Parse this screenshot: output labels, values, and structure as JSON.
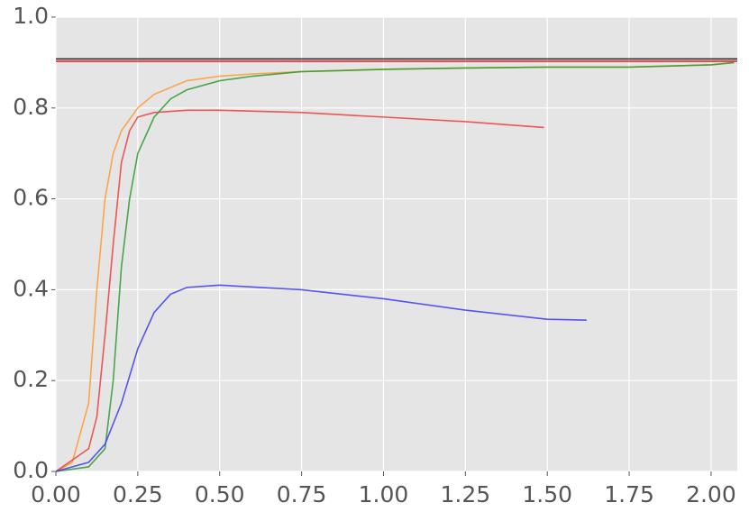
{
  "chart_data": {
    "type": "line",
    "xlim": [
      0,
      2.08
    ],
    "ylim": [
      0,
      1.0
    ],
    "xticks": [
      {
        "value": 0,
        "label": "0.00"
      },
      {
        "value": 0.25,
        "label": "0.25"
      },
      {
        "value": 0.5,
        "label": "0.50"
      },
      {
        "value": 0.75,
        "label": "0.75"
      },
      {
        "value": 1.0,
        "label": "1.00"
      },
      {
        "value": 1.25,
        "label": "1.25"
      },
      {
        "value": 1.5,
        "label": "1.50"
      },
      {
        "value": 1.75,
        "label": "1.75"
      },
      {
        "value": 2.0,
        "label": "2.00"
      }
    ],
    "yticks": [
      {
        "value": 0,
        "label": "0.0"
      },
      {
        "value": 0.2,
        "label": "0.2"
      },
      {
        "value": 0.4,
        "label": "0.4"
      },
      {
        "value": 0.6,
        "label": "0.6"
      },
      {
        "value": 0.8,
        "label": "0.8"
      },
      {
        "value": 1.0,
        "label": "1.0"
      }
    ],
    "grid": true,
    "series": [
      {
        "color": "#000000",
        "x": [
          0,
          2.08
        ],
        "values": [
          0.908,
          0.908
        ]
      },
      {
        "color": "#e8000b",
        "x": [
          0,
          2.08
        ],
        "values": [
          0.903,
          0.903
        ]
      },
      {
        "color": "#ff9a2e",
        "x": [
          0,
          0.05,
          0.1,
          0.125,
          0.15,
          0.175,
          0.2,
          0.25,
          0.3,
          0.4,
          0.5,
          0.6,
          0.75,
          1.0,
          1.25,
          1.5,
          1.75,
          2.0,
          2.07
        ],
        "values": [
          0,
          0.02,
          0.15,
          0.4,
          0.6,
          0.7,
          0.75,
          0.8,
          0.83,
          0.86,
          0.87,
          0.875,
          0.88,
          0.885,
          0.888,
          0.89,
          0.89,
          0.895,
          0.9
        ]
      },
      {
        "color": "#f03c3c",
        "x": [
          0,
          0.1,
          0.125,
          0.15,
          0.175,
          0.2,
          0.225,
          0.25,
          0.3,
          0.4,
          0.5,
          0.75,
          1.0,
          1.25,
          1.49
        ],
        "values": [
          0,
          0.05,
          0.12,
          0.3,
          0.5,
          0.68,
          0.75,
          0.78,
          0.79,
          0.795,
          0.795,
          0.79,
          0.78,
          0.77,
          0.757
        ]
      },
      {
        "color": "#2e9a2e",
        "x": [
          0,
          0.1,
          0.15,
          0.175,
          0.2,
          0.225,
          0.25,
          0.3,
          0.35,
          0.4,
          0.5,
          0.6,
          0.75,
          1.0,
          1.25,
          1.5,
          1.75,
          2.0,
          2.07
        ],
        "values": [
          0,
          0.01,
          0.05,
          0.2,
          0.45,
          0.6,
          0.7,
          0.78,
          0.82,
          0.84,
          0.86,
          0.87,
          0.88,
          0.885,
          0.888,
          0.89,
          0.89,
          0.895,
          0.9
        ]
      },
      {
        "color": "#3c3cf0",
        "x": [
          0,
          0.1,
          0.15,
          0.2,
          0.25,
          0.3,
          0.35,
          0.4,
          0.5,
          0.75,
          1.0,
          1.25,
          1.5,
          1.62
        ],
        "values": [
          0,
          0.02,
          0.06,
          0.15,
          0.27,
          0.35,
          0.39,
          0.405,
          0.41,
          0.4,
          0.38,
          0.355,
          0.335,
          0.333
        ]
      }
    ]
  }
}
